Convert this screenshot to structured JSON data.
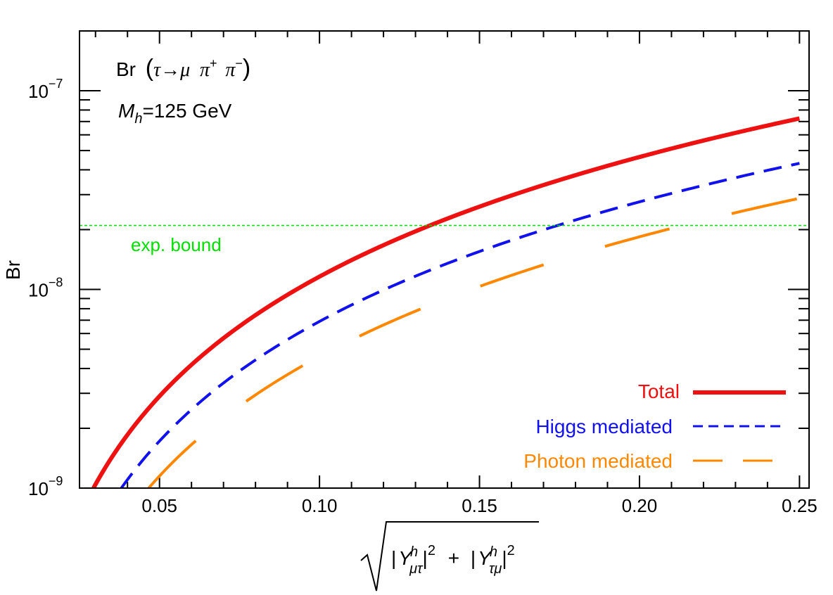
{
  "chart_data": {
    "type": "line",
    "yscale": "log",
    "ylabel": "Br",
    "xlabel": "√( |Y^h_μτ|² + |Y^h_τμ|² )",
    "xlim": [
      0.025,
      0.253
    ],
    "ylim": [
      1e-09,
      2e-07
    ],
    "xticks": [
      0.05,
      0.1,
      0.15,
      0.2,
      0.25
    ],
    "xtick_labels": [
      "0.05",
      "0.10",
      "0.15",
      "0.20",
      "0.25"
    ],
    "yticks": [
      1e-09,
      1e-08,
      1e-07
    ],
    "ytick_labels": [
      {
        "base": "10",
        "exp": "−9"
      },
      {
        "base": "10",
        "exp": "−8"
      },
      {
        "base": "10",
        "exp": "−7"
      }
    ],
    "annotations": {
      "process": {
        "prefix": "Br",
        "tau": "τ",
        "arrow": "→",
        "mu": "μ",
        "pi": "π",
        "plus": "+",
        "minus": "−"
      },
      "mass": {
        "symbol": "M",
        "sub": "h",
        "value": "=125 GeV"
      }
    },
    "x_axis_label": {
      "Y": "Y",
      "h": "h",
      "sub1": "μτ",
      "sub2": "τμ",
      "sq": "2",
      "plus": "+"
    },
    "exp_bound": {
      "label": "exp. bound",
      "value": 2.1e-08,
      "color": "#00dd00"
    },
    "series": [
      {
        "name": "Total",
        "color": "#ee1111",
        "style": "solid",
        "coeff": 1.16e-06
      },
      {
        "name": "Higgs mediated",
        "color": "#1111ee",
        "style": "dashed",
        "coeff": 6.9e-07
      },
      {
        "name": "Photon mediated",
        "color": "#ff8800",
        "style": "longdash",
        "coeff": 4.6e-07
      }
    ]
  }
}
